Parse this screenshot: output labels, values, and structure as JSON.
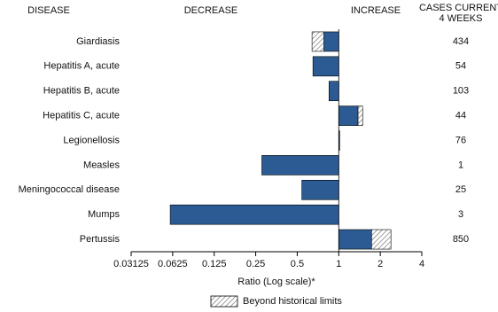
{
  "chart_data": {
    "type": "bar",
    "orientation": "horizontal",
    "header_disease": "DISEASE",
    "header_decrease": "DECREASE",
    "header_increase": "INCREASE",
    "cases_header": [
      "CASES CURRENT",
      "4 WEEKS"
    ],
    "categories": [
      "Giardiasis",
      "Hepatitis A, acute",
      "Hepatitis B, acute",
      "Hepatitis C, acute",
      "Legionellosis",
      "Measles",
      "Meningococcal disease",
      "Mumps",
      "Pertussis"
    ],
    "values": [
      0.64,
      0.65,
      0.85,
      1.49,
      1.01,
      0.277,
      0.54,
      0.06,
      2.39
    ],
    "historical_limits": [
      0.78,
      null,
      null,
      1.38,
      null,
      null,
      null,
      null,
      1.73
    ],
    "cases": [
      434,
      54,
      103,
      44,
      76,
      1,
      25,
      3,
      850
    ],
    "color": "#2b5b92",
    "log_scale": true,
    "log_base": 2,
    "xlim": [
      0.03125,
      4
    ],
    "xticks": [
      0.03125,
      0.0625,
      0.125,
      0.25,
      0.5,
      1,
      2,
      4
    ],
    "xlabel": "Ratio (Log scale)*",
    "legend_label": "Beyond historical limits"
  }
}
